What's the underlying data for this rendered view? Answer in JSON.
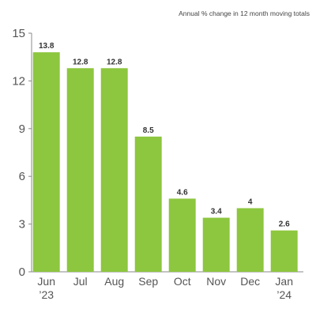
{
  "chart_data": {
    "type": "bar",
    "title": "",
    "subtitle": "Annual % change in 12 month moving totals",
    "xlabel": "",
    "ylabel": "",
    "categories": [
      "Jun",
      "Jul",
      "Aug",
      "Sep",
      "Oct",
      "Nov",
      "Dec",
      "Jan"
    ],
    "category_sublabels": [
      "’23",
      "",
      "",
      "",
      "",
      "",
      "",
      "’24"
    ],
    "values": [
      13.8,
      12.8,
      12.8,
      8.5,
      4.6,
      3.4,
      4,
      2.6
    ],
    "value_labels": [
      "13.8",
      "12.8",
      "12.8",
      "8.5",
      "4.6",
      "3.4",
      "4",
      "2.6"
    ],
    "ylim": [
      0,
      15
    ],
    "yticks": [
      0,
      3,
      6,
      9,
      12,
      15
    ],
    "ytick_labels": [
      "0",
      "3",
      "6",
      "9",
      "12",
      "15"
    ],
    "grid": false,
    "legend": "none",
    "colors": {
      "bar": "#8DC63F",
      "axis": "#8A8A8A",
      "text": "#555555",
      "label": "#333333"
    }
  }
}
